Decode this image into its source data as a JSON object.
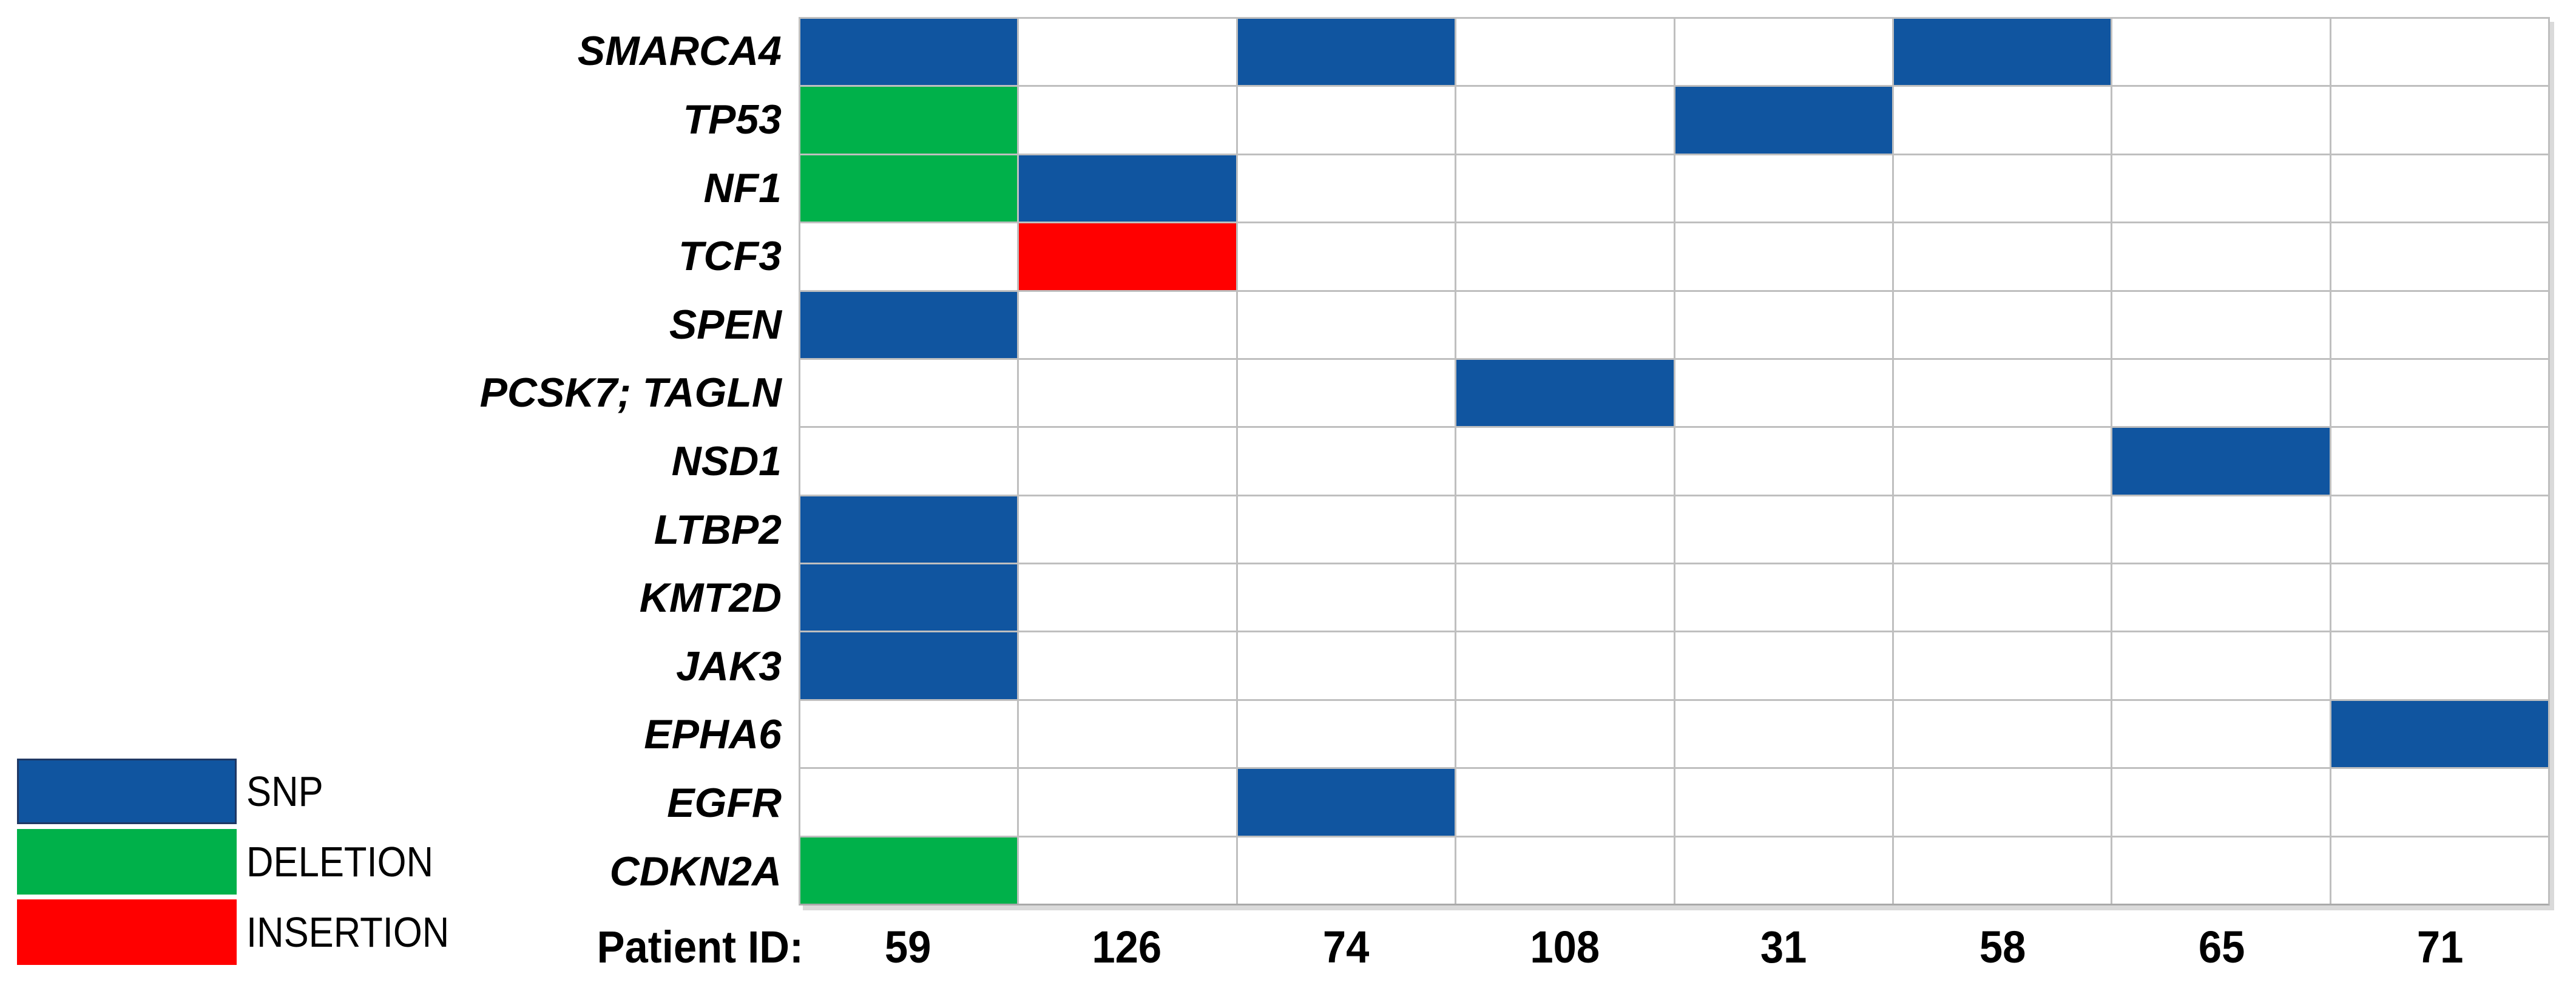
{
  "figure": {
    "background": "#FFFFFF"
  },
  "chart_data": {
    "type": "heatmap",
    "subtype": "oncoprint-mutation-matrix",
    "title": "",
    "rows_label": "genes",
    "rows": [
      "SMARCA4",
      "TP53",
      "NF1",
      "TCF3",
      "SPEN",
      "PCSK7; TAGLN",
      "NSD1",
      "LTBP2",
      "KMT2D",
      "JAK3",
      "EPHA6",
      "EGFR",
      "CDKN2A"
    ],
    "columns_label": "Patient ID:",
    "columns": [
      "59",
      "126",
      "74",
      "108",
      "31",
      "58",
      "65",
      "71"
    ],
    "legend_position": "bottom-left",
    "legend": [
      {
        "key": "SNP",
        "label": "SNP",
        "color": "#1055A0",
        "border": "#1F3864"
      },
      {
        "key": "DELETION",
        "label": "DELETION",
        "color": "#00B14A",
        "border": "#00B14A"
      },
      {
        "key": "INSERTION",
        "label": "INSERTION",
        "color": "#FF0000",
        "border": "#FF0000"
      }
    ],
    "mutations": [
      {
        "gene": "SMARCA4",
        "patient": "59",
        "type": "SNP"
      },
      {
        "gene": "SMARCA4",
        "patient": "74",
        "type": "SNP"
      },
      {
        "gene": "SMARCA4",
        "patient": "58",
        "type": "SNP"
      },
      {
        "gene": "TP53",
        "patient": "59",
        "type": "DELETION"
      },
      {
        "gene": "TP53",
        "patient": "31",
        "type": "SNP"
      },
      {
        "gene": "NF1",
        "patient": "59",
        "type": "DELETION"
      },
      {
        "gene": "NF1",
        "patient": "126",
        "type": "SNP"
      },
      {
        "gene": "TCF3",
        "patient": "126",
        "type": "INSERTION"
      },
      {
        "gene": "SPEN",
        "patient": "59",
        "type": "SNP"
      },
      {
        "gene": "PCSK7; TAGLN",
        "patient": "108",
        "type": "SNP"
      },
      {
        "gene": "NSD1",
        "patient": "65",
        "type": "SNP"
      },
      {
        "gene": "LTBP2",
        "patient": "59",
        "type": "SNP"
      },
      {
        "gene": "KMT2D",
        "patient": "59",
        "type": "SNP"
      },
      {
        "gene": "JAK3",
        "patient": "59",
        "type": "SNP"
      },
      {
        "gene": "EPHA6",
        "patient": "71",
        "type": "SNP"
      },
      {
        "gene": "EGFR",
        "patient": "74",
        "type": "SNP"
      },
      {
        "gene": "CDKN2A",
        "patient": "59",
        "type": "DELETION"
      }
    ],
    "grid": {
      "line_color": "#BFBFBF",
      "cell_background": "#FFFFFF",
      "shadow_color": "#DADADA",
      "n_rows": 13,
      "n_cols": 8
    }
  }
}
